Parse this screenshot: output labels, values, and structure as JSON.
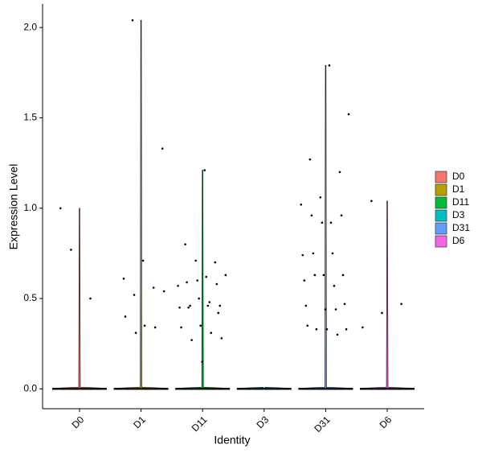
{
  "chart_data": {
    "type": "violin",
    "x_label": "Identity",
    "y_label": "Expression Level",
    "categories": [
      "D0",
      "D1",
      "D11",
      "D3",
      "D31",
      "D6"
    ],
    "ylim": [
      -0.11,
      2.13
    ],
    "yticks": [
      {
        "value": 0,
        "label": "0.0"
      },
      {
        "value": 0.5,
        "label": "0.5"
      },
      {
        "value": 1,
        "label": "1.0"
      },
      {
        "value": 1.5,
        "label": "1.5"
      },
      {
        "value": 2,
        "label": "2.0"
      }
    ],
    "series": [
      {
        "name": "D0",
        "color": "#F8766D",
        "values": [
          1.0,
          0.5,
          0.77
        ]
      },
      {
        "name": "D1",
        "color": "#B79F00",
        "values": [
          2.04,
          1.33,
          0.71,
          0.61,
          0.56,
          0.52,
          0.54,
          0.35,
          0.4,
          0.34,
          0.31
        ]
      },
      {
        "name": "D11",
        "color": "#00BA38",
        "values": [
          1.21,
          0.8,
          0.7,
          0.71,
          0.63,
          0.62,
          0.59,
          0.58,
          0.6,
          0.57,
          0.46,
          0.45,
          0.42,
          0.5,
          0.45,
          0.48,
          0.46,
          0.46,
          0.35,
          0.34,
          0.31,
          0.27,
          0.28,
          0.15
        ]
      },
      {
        "name": "D3",
        "color": "#00BFC4",
        "values": []
      },
      {
        "name": "D31",
        "color": "#619CFF",
        "values": [
          1.52,
          1.79,
          1.27,
          1.2,
          1.06,
          1.02,
          0.92,
          0.96,
          0.96,
          0.92,
          0.74,
          0.75,
          0.75,
          0.63,
          0.63,
          0.6,
          0.57,
          0.63,
          0.47,
          0.44,
          0.46,
          0.44,
          0.33,
          0.33,
          0.33,
          0.35,
          0.3
        ]
      },
      {
        "name": "D6",
        "color": "#F564E3",
        "values": [
          1.04,
          0.47,
          0.42,
          0.34
        ]
      }
    ]
  }
}
